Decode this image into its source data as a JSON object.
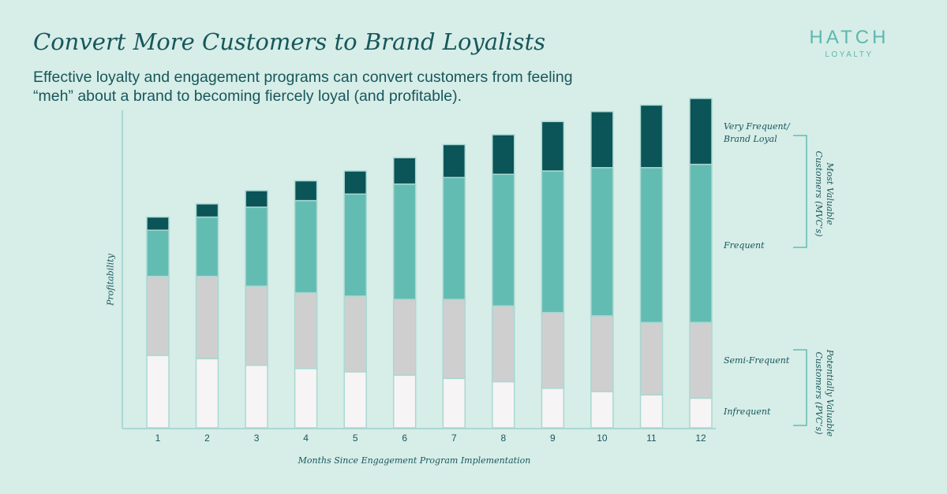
{
  "header": {
    "title": "Convert More Customers to Brand Loyalists",
    "subtitle": "Effective loyalty and engagement programs can convert customers from feeling “meh” about a brand to becoming fiercely loyal (and profitable)."
  },
  "logo": {
    "main": "HATCH",
    "sub": "LOYALTY"
  },
  "colors": {
    "background": "#d7ede8",
    "very_frequent": "#0b5457",
    "frequent": "#63bcb2",
    "semi_frequent": "#cfcfcf",
    "infrequent": "#f6f4f4",
    "axis": "#a9d8d2",
    "text": "#17575b"
  },
  "segment_labels": {
    "very_frequent": [
      "Very Frequent/",
      "Brand Loyal"
    ],
    "frequent": "Frequent",
    "semi_frequent": "Semi-Frequent",
    "infrequent": "Infrequent"
  },
  "group_labels": {
    "mvc": [
      "Most Valuable",
      "Customers (MVC’s)"
    ],
    "pvc": [
      "Potentially Valuable",
      "Customers (PVC’s)"
    ]
  },
  "chart_data": {
    "type": "bar",
    "stacked": true,
    "title": "Convert More Customers to Brand Loyalists",
    "xlabel": "Months Since Engagement Program Implementation",
    "ylabel": "Profitability",
    "categories": [
      "1",
      "2",
      "3",
      "4",
      "5",
      "6",
      "7",
      "8",
      "9",
      "10",
      "11",
      "12"
    ],
    "ylim": [
      0,
      100
    ],
    "grid": false,
    "series": [
      {
        "name": "Infrequent",
        "key": "infrequent",
        "values": [
          22,
          21,
          19,
          18,
          17,
          16,
          15,
          14,
          12,
          11,
          10,
          9
        ]
      },
      {
        "name": "Semi-Frequent",
        "key": "semi_frequent",
        "values": [
          24,
          25,
          24,
          23,
          23,
          23,
          24,
          23,
          23,
          23,
          22,
          23
        ]
      },
      {
        "name": "Frequent",
        "key": "frequent",
        "values": [
          14,
          18,
          24,
          28,
          31,
          35,
          37,
          40,
          43,
          45,
          47,
          48
        ]
      },
      {
        "name": "Very Frequent/Brand Loyal",
        "key": "very_frequent",
        "values": [
          4,
          4,
          5,
          6,
          7,
          8,
          10,
          12,
          15,
          17,
          19,
          20
        ]
      }
    ]
  }
}
